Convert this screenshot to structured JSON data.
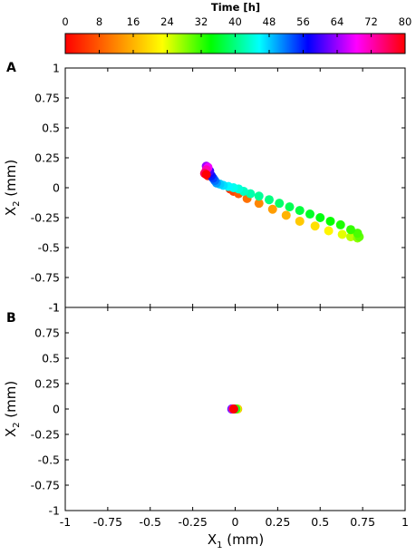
{
  "chart_data": [
    {
      "panel": "A",
      "type": "scatter",
      "xlabel": "X",
      "xlabel_sub": "1",
      "xlabel_unit": " (mm)",
      "ylabel": "X",
      "ylabel_sub": "2",
      "ylabel_unit": " (mm)",
      "xlim": [
        -1,
        1
      ],
      "ylim": [
        -1,
        1
      ],
      "xticks": [
        "-1",
        "-0.75",
        "-0.5",
        "-0.25",
        "0",
        "0.25",
        "0.5",
        "0.75",
        "1"
      ],
      "yticks": [
        "1",
        "0.75",
        "0.5",
        "0.25",
        "0",
        "-0.25",
        "-0.5",
        "-0.75",
        "-1"
      ],
      "xticks_shown": false,
      "grid": false,
      "points": [
        {
          "t": 0,
          "x": -0.17,
          "y": 0.12
        },
        {
          "t": 2,
          "x": -0.16,
          "y": 0.1
        },
        {
          "t": 4,
          "x": -0.03,
          "y": -0.01
        },
        {
          "t": 6,
          "x": -0.01,
          "y": -0.03
        },
        {
          "t": 8,
          "x": 0.02,
          "y": -0.05
        },
        {
          "t": 10,
          "x": 0.07,
          "y": -0.09
        },
        {
          "t": 12,
          "x": 0.14,
          "y": -0.13
        },
        {
          "t": 14,
          "x": 0.22,
          "y": -0.18
        },
        {
          "t": 16,
          "x": 0.3,
          "y": -0.23
        },
        {
          "t": 18,
          "x": 0.38,
          "y": -0.28
        },
        {
          "t": 20,
          "x": 0.47,
          "y": -0.32
        },
        {
          "t": 22,
          "x": 0.55,
          "y": -0.36
        },
        {
          "t": 24,
          "x": 0.63,
          "y": -0.39
        },
        {
          "t": 26,
          "x": 0.68,
          "y": -0.41
        },
        {
          "t": 28,
          "x": 0.72,
          "y": -0.42
        },
        {
          "t": 30,
          "x": 0.73,
          "y": -0.41
        },
        {
          "t": 31,
          "x": 0.72,
          "y": -0.38
        },
        {
          "t": 32,
          "x": 0.68,
          "y": -0.35
        },
        {
          "t": 33,
          "x": 0.62,
          "y": -0.31
        },
        {
          "t": 34,
          "x": 0.56,
          "y": -0.28
        },
        {
          "t": 35,
          "x": 0.5,
          "y": -0.25
        },
        {
          "t": 36,
          "x": 0.44,
          "y": -0.22
        },
        {
          "t": 37,
          "x": 0.38,
          "y": -0.19
        },
        {
          "t": 38,
          "x": 0.32,
          "y": -0.16
        },
        {
          "t": 39,
          "x": 0.26,
          "y": -0.13
        },
        {
          "t": 40,
          "x": 0.2,
          "y": -0.1
        },
        {
          "t": 41,
          "x": 0.14,
          "y": -0.07
        },
        {
          "t": 42,
          "x": 0.09,
          "y": -0.05
        },
        {
          "t": 43,
          "x": 0.05,
          "y": -0.03
        },
        {
          "t": 44,
          "x": 0.02,
          "y": -0.01
        },
        {
          "t": 45,
          "x": -0.01,
          "y": 0.0
        },
        {
          "t": 46,
          "x": -0.04,
          "y": 0.01
        },
        {
          "t": 47,
          "x": -0.07,
          "y": 0.02
        },
        {
          "t": 48,
          "x": -0.09,
          "y": 0.03
        },
        {
          "t": 50,
          "x": -0.11,
          "y": 0.04
        },
        {
          "t": 52,
          "x": -0.12,
          "y": 0.06
        },
        {
          "t": 54,
          "x": -0.13,
          "y": 0.08
        },
        {
          "t": 56,
          "x": -0.14,
          "y": 0.1
        },
        {
          "t": 58,
          "x": -0.15,
          "y": 0.12
        },
        {
          "t": 60,
          "x": -0.15,
          "y": 0.14
        },
        {
          "t": 62,
          "x": -0.16,
          "y": 0.16
        },
        {
          "t": 64,
          "x": -0.17,
          "y": 0.18
        },
        {
          "t": 68,
          "x": -0.16,
          "y": 0.17
        },
        {
          "t": 72,
          "x": -0.17,
          "y": 0.15
        },
        {
          "t": 76,
          "x": -0.18,
          "y": 0.12
        },
        {
          "t": 80,
          "x": -0.17,
          "y": 0.11
        }
      ]
    },
    {
      "panel": "B",
      "type": "scatter",
      "xlabel": "X",
      "xlabel_sub": "1",
      "xlabel_unit": " (mm)",
      "ylabel": "X",
      "ylabel_sub": "2",
      "ylabel_unit": " (mm)",
      "xlim": [
        -1,
        1
      ],
      "ylim": [
        -1,
        1
      ],
      "xticks": [
        "-1",
        "-0.75",
        "-0.5",
        "-0.25",
        "0",
        "0.25",
        "0.5",
        "0.75",
        "1"
      ],
      "yticks": [
        "1",
        "0.75",
        "0.5",
        "0.25",
        "0",
        "-0.25",
        "-0.5",
        "-0.75",
        "-1"
      ],
      "xticks_shown": true,
      "grid": false,
      "points": [
        {
          "t": 0,
          "x": 0.005,
          "y": 0.0
        },
        {
          "t": 8,
          "x": 0.012,
          "y": 0.0
        },
        {
          "t": 16,
          "x": 0.015,
          "y": 0.0
        },
        {
          "t": 24,
          "x": 0.01,
          "y": 0.0
        },
        {
          "t": 32,
          "x": 0.005,
          "y": 0.0
        },
        {
          "t": 40,
          "x": -0.005,
          "y": 0.0
        },
        {
          "t": 48,
          "x": -0.015,
          "y": 0.0
        },
        {
          "t": 56,
          "x": -0.02,
          "y": 0.0
        },
        {
          "t": 64,
          "x": -0.018,
          "y": 0.0
        },
        {
          "t": 72,
          "x": -0.012,
          "y": 0.0
        },
        {
          "t": 80,
          "x": -0.008,
          "y": 0.0
        }
      ]
    }
  ],
  "colorbar": {
    "title": "Time [h]",
    "min": 0,
    "max": 80,
    "ticks": [
      "0",
      "8",
      "16",
      "24",
      "32",
      "40",
      "48",
      "56",
      "64",
      "72",
      "80"
    ],
    "colors": [
      "#ff0000",
      "#ff8000",
      "#ffff00",
      "#00ff00",
      "#00ffff",
      "#0000ff",
      "#ff00ff",
      "#ff0000"
    ]
  }
}
